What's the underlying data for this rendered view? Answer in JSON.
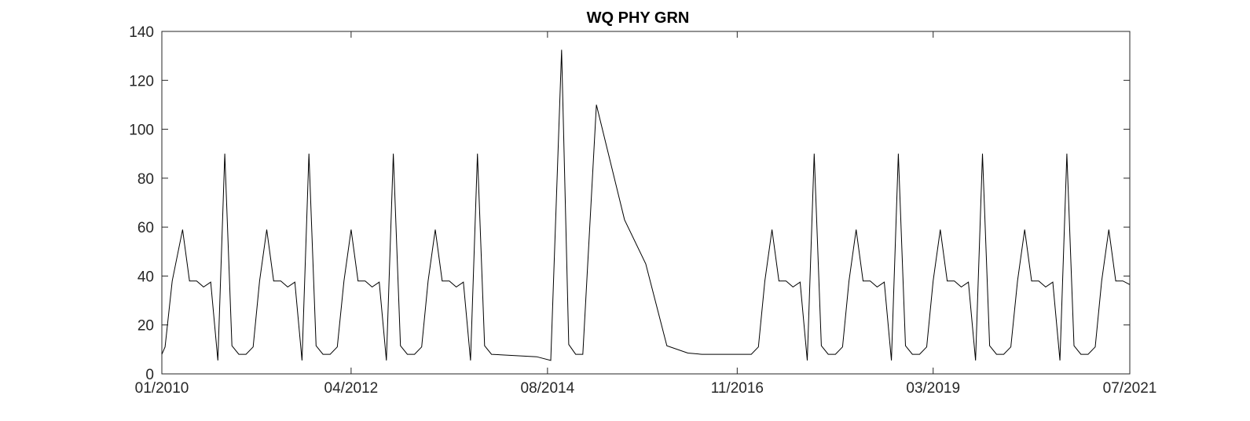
{
  "chart_data": {
    "type": "line",
    "title": "WQ PHY GRN",
    "xlabel": "",
    "ylabel": "",
    "x_tick_labels": [
      "01/2010",
      "04/2012",
      "08/2014",
      "11/2016",
      "03/2019",
      "07/2021"
    ],
    "y_tick_labels": [
      "0",
      "20",
      "40",
      "60",
      "80",
      "100",
      "120",
      "140"
    ],
    "xlim": [
      "2010-01-01",
      "2021-07-01"
    ],
    "ylim": [
      0,
      140
    ],
    "grid": false,
    "colors": {
      "line": "#000000",
      "axes": "#262626",
      "background": "#ffffff"
    },
    "series": [
      {
        "x": [
          "2010-01-01",
          "2010-01-15",
          "2010-02-15",
          "2010-04-01",
          "2010-05-01",
          "2010-06-01",
          "2010-07-01",
          "2010-08-01",
          "2010-09-01",
          "2010-10-01",
          "2010-11-01",
          "2010-12-01",
          "2011-01-01",
          "2011-02-01",
          "2011-03-01",
          "2011-04-01",
          "2011-05-01",
          "2011-06-01",
          "2011-07-01",
          "2011-08-01",
          "2011-09-01",
          "2011-10-01",
          "2011-11-01",
          "2011-12-01",
          "2012-01-01",
          "2012-02-01",
          "2012-03-01",
          "2012-04-01",
          "2012-05-01",
          "2012-06-01",
          "2012-07-01",
          "2012-08-01",
          "2012-09-01",
          "2012-10-01",
          "2012-11-01",
          "2012-12-01",
          "2013-01-01",
          "2013-02-01",
          "2013-03-01",
          "2013-04-01",
          "2013-05-01",
          "2013-06-01",
          "2013-07-01",
          "2013-08-01",
          "2013-09-01",
          "2013-10-01",
          "2013-11-01",
          "2013-12-01",
          "2014-06-15",
          "2014-08-15",
          "2014-10-01",
          "2014-11-01",
          "2014-12-01",
          "2015-01-01",
          "2015-03-01",
          "2015-07-01",
          "2015-10-01",
          "2016-01-01",
          "2016-04-01",
          "2016-06-01",
          "2017-01-01",
          "2017-02-01",
          "2017-03-01",
          "2017-04-01",
          "2017-05-01",
          "2017-06-01",
          "2017-07-01",
          "2017-08-01",
          "2017-09-01",
          "2017-10-01",
          "2017-11-01",
          "2017-12-01",
          "2018-01-01",
          "2018-02-01",
          "2018-03-01",
          "2018-04-01",
          "2018-05-01",
          "2018-06-01",
          "2018-07-01",
          "2018-08-01",
          "2018-09-01",
          "2018-10-01",
          "2018-11-01",
          "2018-12-01",
          "2019-01-01",
          "2019-02-01",
          "2019-03-01",
          "2019-04-01",
          "2019-05-01",
          "2019-06-01",
          "2019-07-01",
          "2019-08-01",
          "2019-09-01",
          "2019-10-01",
          "2019-11-01",
          "2019-12-01",
          "2020-01-01",
          "2020-02-01",
          "2020-03-01",
          "2020-04-01",
          "2020-05-01",
          "2020-06-01",
          "2020-07-01",
          "2020-08-01",
          "2020-09-01",
          "2020-10-01",
          "2020-11-01",
          "2020-12-01",
          "2021-01-01",
          "2021-02-01",
          "2021-03-01",
          "2021-04-01",
          "2021-05-01",
          "2021-06-01",
          "2021-07-01"
        ],
        "y": [
          8,
          11,
          38,
          59,
          38,
          38,
          35.5,
          37.5,
          5.5,
          90,
          11.5,
          8,
          8,
          11,
          38,
          59,
          38,
          38,
          35.5,
          37.5,
          5.5,
          90,
          11.5,
          8,
          8,
          11,
          38,
          59,
          38,
          38,
          35.5,
          37.5,
          5.5,
          90,
          11.5,
          8,
          8,
          11,
          38,
          59,
          38,
          38,
          35.5,
          37.5,
          5.5,
          90,
          11.5,
          8,
          7,
          5.5,
          132.5,
          12,
          8,
          8,
          110,
          63,
          45,
          11.5,
          8.5,
          8,
          8,
          11,
          38,
          59,
          38,
          38,
          35.5,
          37.5,
          5.5,
          90,
          11.5,
          8,
          8,
          11,
          38,
          59,
          38,
          38,
          35.5,
          37.5,
          5.5,
          90,
          11.5,
          8,
          8,
          11,
          38,
          59,
          38,
          38,
          35.5,
          37.5,
          5.5,
          90,
          11.5,
          8,
          8,
          11,
          38,
          59,
          38,
          38,
          35.5,
          37.5,
          5.5,
          90,
          11.5,
          8,
          8,
          11,
          38,
          59,
          38,
          38,
          36.5
        ]
      }
    ]
  }
}
